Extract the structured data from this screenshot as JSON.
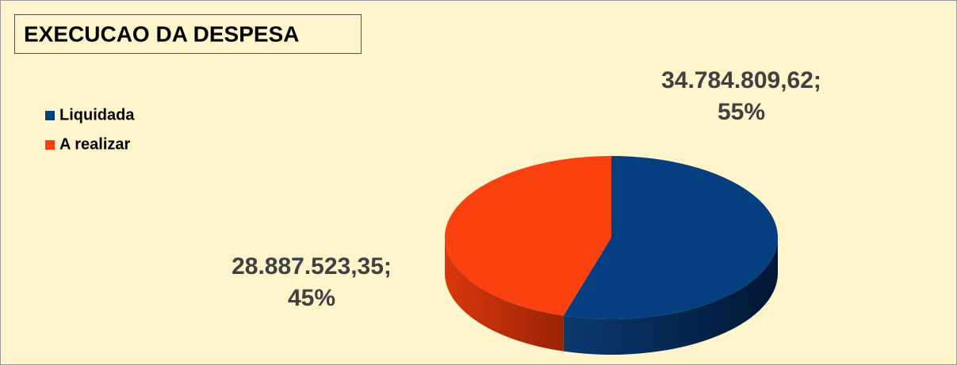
{
  "chart_data": {
    "type": "pie3d",
    "title": "EXECUCAO DA DESPESA",
    "categories": [
      "Liquidada",
      "A realizar"
    ],
    "values": [
      34784809.62,
      28887523.35
    ],
    "value_labels": [
      "34.784.809,62;",
      "28.887.523,35;"
    ],
    "percents": [
      55,
      45
    ],
    "percent_labels": [
      "55%",
      "45%"
    ],
    "colors": [
      "#063f80",
      "#fa410f"
    ],
    "legend": "left"
  }
}
